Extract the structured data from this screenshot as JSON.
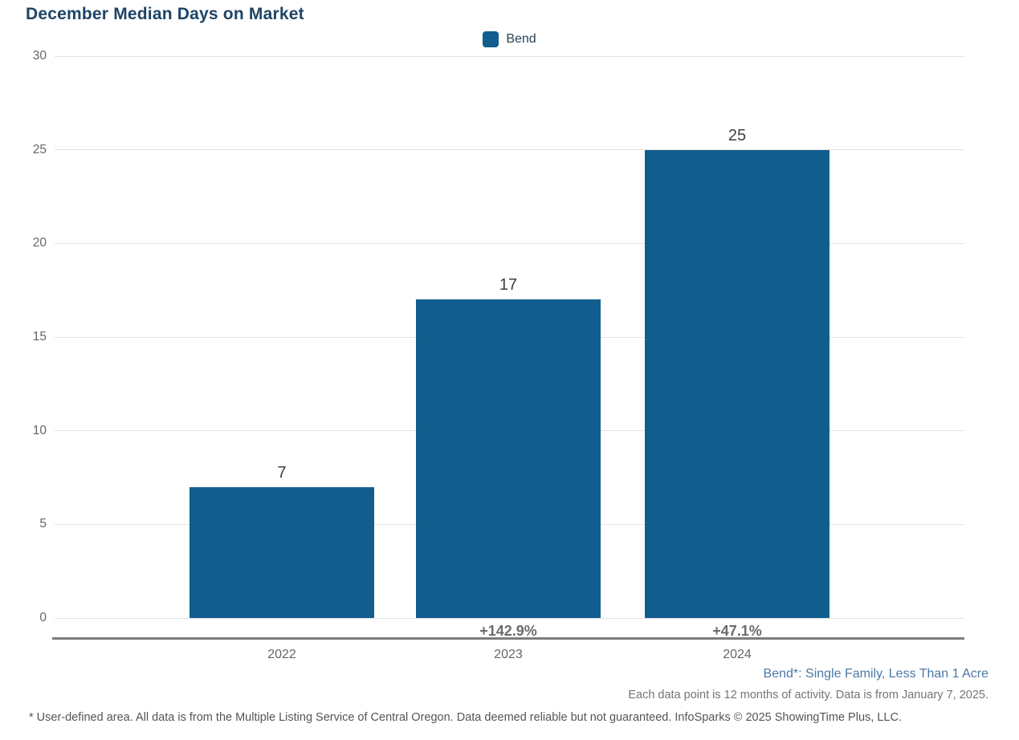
{
  "header": {
    "title": "December Median Days on Market"
  },
  "legend": {
    "items": [
      {
        "label": "Bend",
        "color": "#115E8E"
      }
    ]
  },
  "chart_data": {
    "type": "bar",
    "title": "December Median Days on Market",
    "categories": [
      "2022",
      "2023",
      "2024"
    ],
    "series": [
      {
        "name": "Bend",
        "color": "#115E8E",
        "values": [
          7,
          17,
          25
        ]
      }
    ],
    "bar_value_labels": [
      "7",
      "17",
      "25"
    ],
    "pct_change_labels": [
      "",
      "+142.9%",
      "+47.1%"
    ],
    "xlabel": "",
    "ylabel": "",
    "ylim": [
      0,
      30
    ],
    "yticks": [
      0,
      5,
      10,
      15,
      20,
      25,
      30
    ],
    "grid": "horizontal",
    "legend_position": "top-center"
  },
  "footnotes": {
    "right_line1": "Bend*: Single Family, Less Than 1 Acre",
    "right_line2": "Each data point is 12 months of activity. Data is from January 7, 2025.",
    "bottom": "* User-defined area. All data is from the Multiple Listing Service of Central Oregon. Data deemed reliable but not guaranteed. InfoSparks © 2025 ShowingTime Plus, LLC."
  },
  "colors": {
    "bar": "#115E8E",
    "title_text": "#1D4466",
    "legend_text": "#2B4257",
    "gridline": "#E2E2E2",
    "axis_line": "#7D7D7D",
    "tick_text": "#666666",
    "value_label_text": "#3F3F3F",
    "pct_text": "#6B6B6B",
    "footnote_blue": "#4D78A8",
    "footnote_gray": "#757575"
  }
}
